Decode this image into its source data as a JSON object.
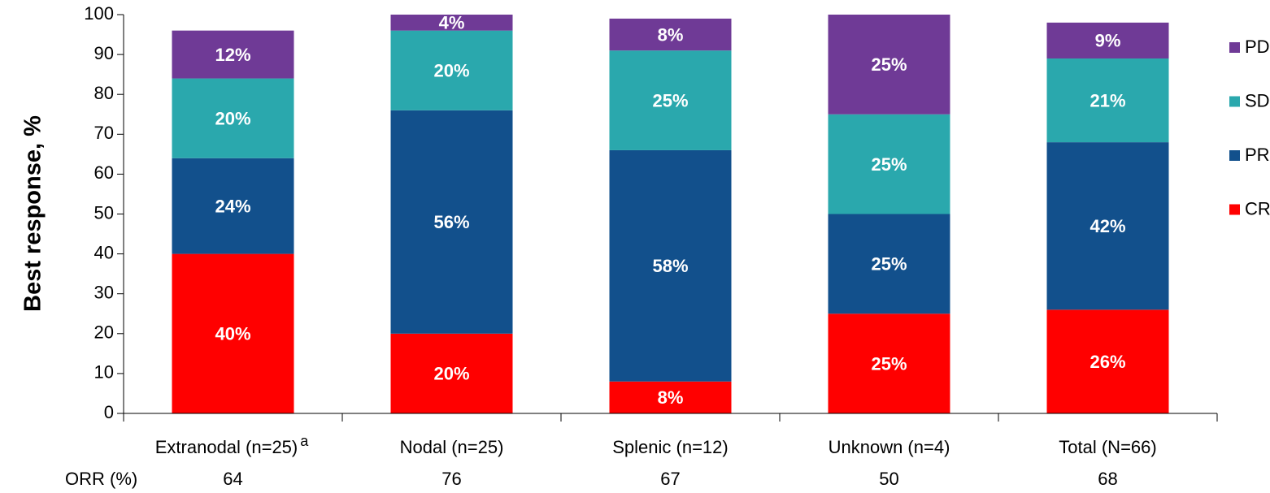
{
  "chart_data": {
    "type": "stacked_bar",
    "ylabel": "Best response, %",
    "categories": [
      "Extranodal (n=25)",
      "Nodal (n=25)",
      "Splenic (n=12)",
      "Unknown (n=4)",
      "Total (N=66)"
    ],
    "category_notes": [
      "a",
      null,
      null,
      null,
      null
    ],
    "series": [
      {
        "name": "CR",
        "color": "#ff0000",
        "values": [
          40,
          20,
          8,
          25,
          26
        ],
        "value_labels": [
          "40%",
          "20%",
          "8%",
          "25%",
          "26%"
        ]
      },
      {
        "name": "PR",
        "color": "#12508c",
        "values": [
          24,
          56,
          58,
          25,
          42
        ],
        "value_labels": [
          "24%",
          "56%",
          "58%",
          "25%",
          "42%"
        ]
      },
      {
        "name": "SD",
        "color": "#2aa8ad",
        "values": [
          20,
          20,
          25,
          25,
          21
        ],
        "value_labels": [
          "20%",
          "20%",
          "25%",
          "25%",
          "21%"
        ]
      },
      {
        "name": "PD",
        "color": "#6f3a96",
        "values": [
          12,
          4,
          8,
          25,
          9
        ],
        "value_labels": [
          "12%",
          "4%",
          "8%",
          "25%",
          "9%"
        ]
      }
    ],
    "ylim": [
      0,
      100
    ],
    "yticks": [
      0,
      10,
      20,
      30,
      40,
      50,
      60,
      70,
      80,
      90,
      100
    ],
    "orr": {
      "label": "ORR (%)",
      "values": [
        64,
        76,
        67,
        50,
        68
      ]
    },
    "legend": "right"
  }
}
